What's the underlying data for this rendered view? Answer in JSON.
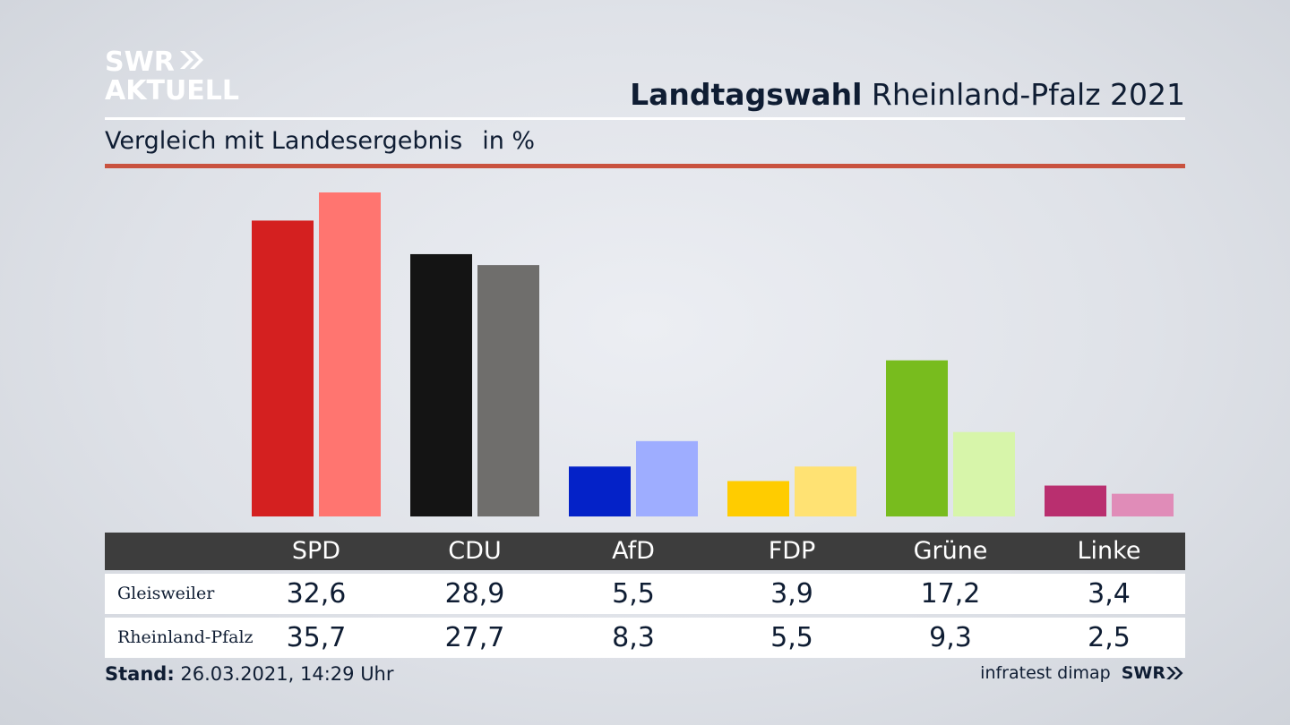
{
  "brand": {
    "line1": "SWR",
    "line2": "AKTUELL",
    "footer_logo": "SWR"
  },
  "header": {
    "title_bold": "Landtagswahl",
    "title_rest": "Rheinland-Pfalz 2021"
  },
  "subtitle": {
    "text": "Vergleich mit Landesergebnis",
    "unit": "in %"
  },
  "table": {
    "rows": [
      {
        "label": "Gleisweiler",
        "values": [
          "32,6",
          "28,9",
          "5,5",
          "3,9",
          "17,2",
          "3,4"
        ]
      },
      {
        "label": "Rheinland-Pfalz",
        "values": [
          "35,7",
          "27,7",
          "8,3",
          "5,5",
          "9,3",
          "2,5"
        ]
      }
    ]
  },
  "footer": {
    "stand_label": "Stand:",
    "stand_value": "26.03.2021, 14:29 Uhr",
    "source": "infratest dimap"
  },
  "colors": {
    "red_line": "#c9523f",
    "table_header": "#3d3d3d",
    "text": "#0f1d33"
  },
  "chart_data": {
    "type": "bar",
    "categories": [
      "SPD",
      "CDU",
      "AfD",
      "FDP",
      "Grüne",
      "Linke"
    ],
    "series": [
      {
        "name": "Gleisweiler",
        "values": [
          32.6,
          28.9,
          5.5,
          3.9,
          17.2,
          3.4
        ],
        "colors": [
          "#d42020",
          "#141414",
          "#0422c8",
          "#ffcc00",
          "#78bc1e",
          "#b92f6f"
        ]
      },
      {
        "name": "Rheinland-Pfalz",
        "values": [
          35.7,
          27.7,
          8.3,
          5.5,
          9.3,
          2.5
        ],
        "colors": [
          "#ff7570",
          "#6f6e6c",
          "#9eadff",
          "#ffe273",
          "#d7f5aa",
          "#e08cb8"
        ]
      }
    ],
    "ylim": [
      0,
      35.7
    ],
    "grid": false,
    "legend": "table below"
  }
}
